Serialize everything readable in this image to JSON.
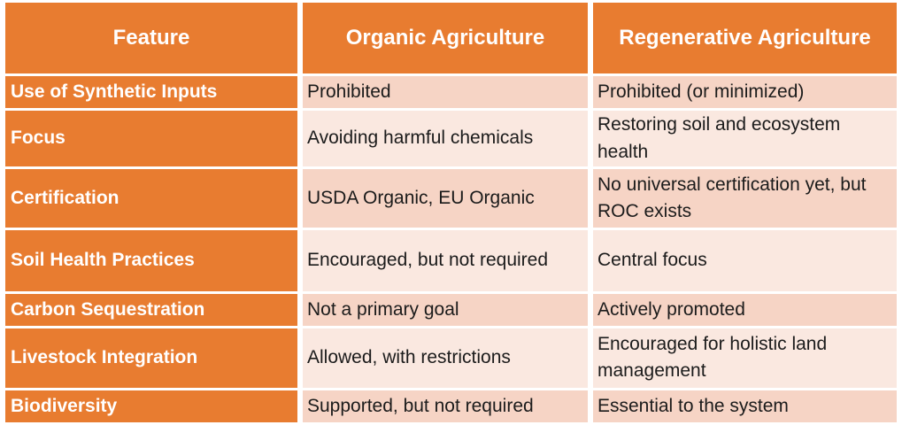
{
  "table": {
    "style": {
      "accent_color": "#E87C30",
      "band_dark_color": "#F6D4C5",
      "band_light_color": "#FAE8E0",
      "header_text_color": "#FFFFFF",
      "body_text_color": "#1B1B1B"
    },
    "header": {
      "feature": "Feature",
      "organic": "Organic Agriculture",
      "regenerative": "Regenerative Agriculture"
    },
    "rows": [
      {
        "feature": "Use of Synthetic Inputs",
        "organic": "Prohibited",
        "regenerative": "Prohibited (or minimized)"
      },
      {
        "feature": "Focus",
        "organic": "Avoiding harmful chemicals",
        "regenerative": "Restoring soil and ecosystem health"
      },
      {
        "feature": "Certification",
        "organic": "USDA Organic, EU Organic",
        "regenerative": "No universal certification yet, but ROC exists"
      },
      {
        "feature": "Soil Health Practices",
        "organic": "Encouraged, but not required",
        "regenerative": "Central focus"
      },
      {
        "feature": "Carbon Sequestration",
        "organic": "Not a primary goal",
        "regenerative": "Actively promoted"
      },
      {
        "feature": "Livestock Integration",
        "organic": "Allowed, with restrictions",
        "regenerative": "Encouraged for holistic land management"
      },
      {
        "feature": "Biodiversity",
        "organic": "Supported, but not required",
        "regenerative": "Essential to the system"
      }
    ]
  }
}
